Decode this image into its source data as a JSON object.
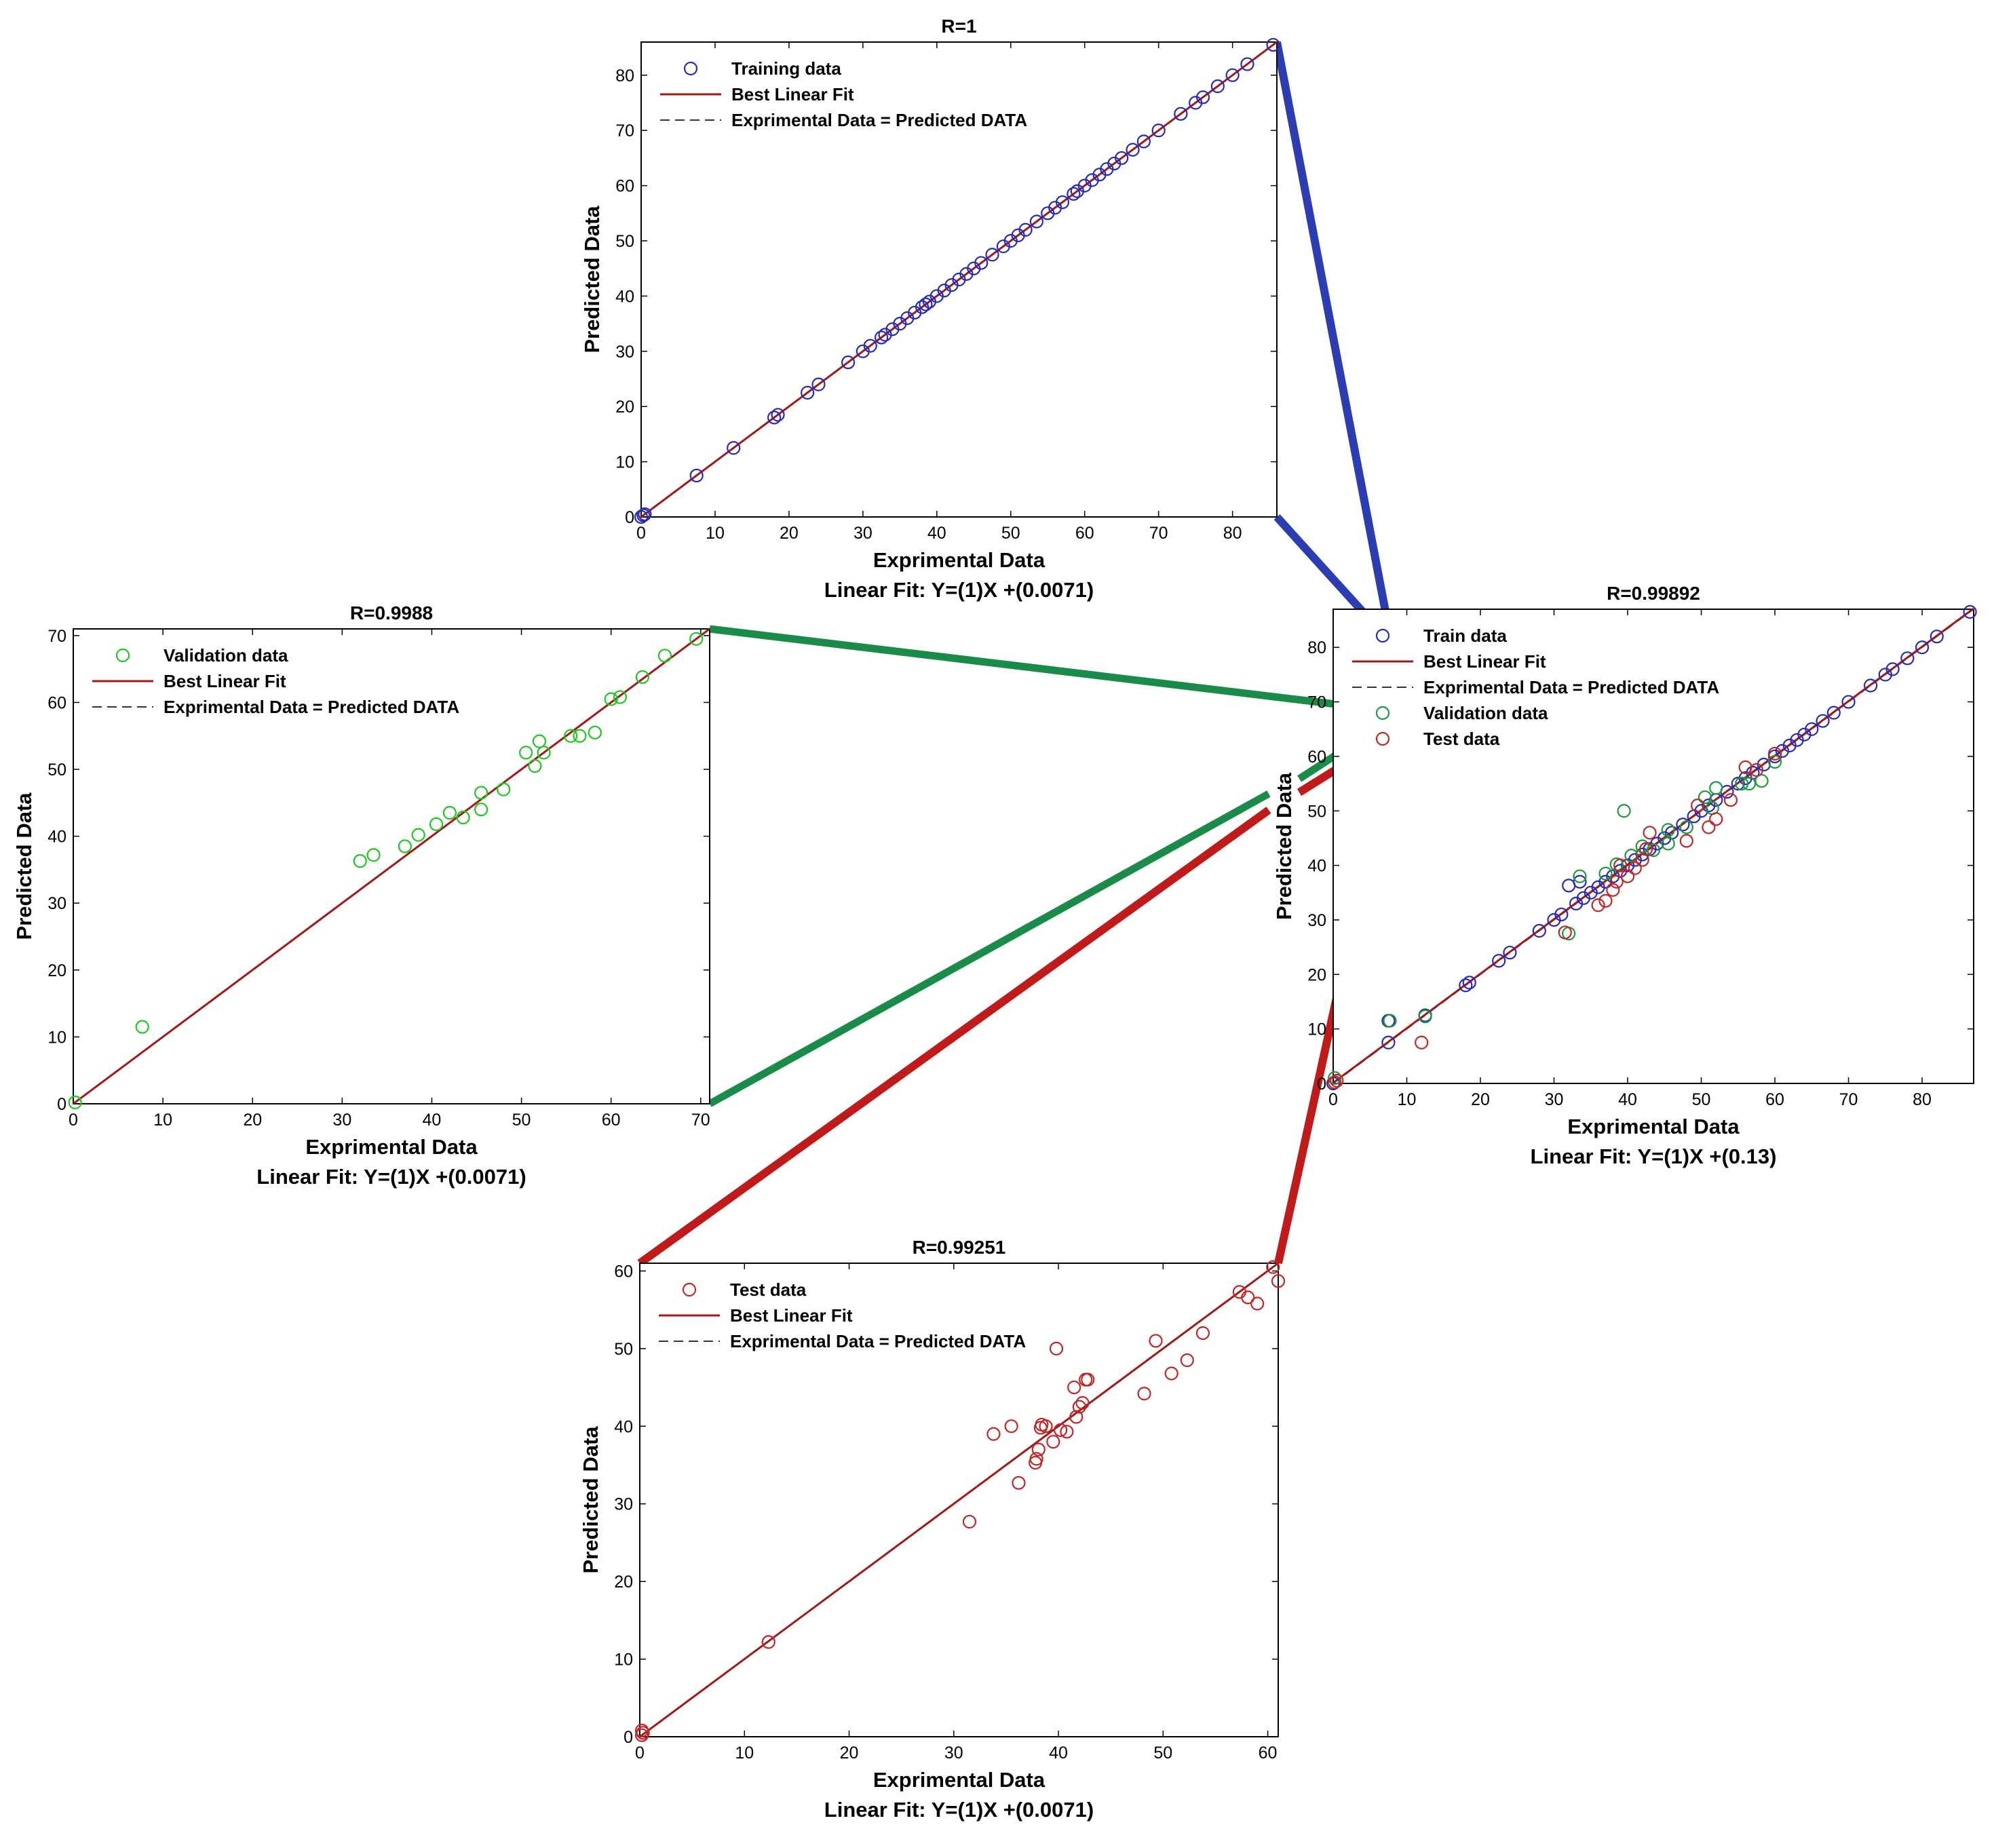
{
  "chart_data": [
    {
      "id": "training",
      "type": "scatter",
      "title": "R=1",
      "xlabel": "Exprimental Data",
      "ylabel": "Predicted Data",
      "fit_label": "Linear Fit: Y=(1)X +(0.0071)",
      "xlim": [
        0,
        86
      ],
      "ylim": [
        0,
        86
      ],
      "xticks": [
        0,
        10,
        20,
        30,
        40,
        50,
        60,
        70,
        80
      ],
      "yticks": [
        0,
        10,
        20,
        30,
        40,
        50,
        60,
        70,
        80
      ],
      "legend": [
        {
          "label": "Training data",
          "kind": "marker",
          "color": "#2a2ab4"
        },
        {
          "label": "Best Linear Fit",
          "kind": "line",
          "color": "#a01818"
        },
        {
          "label": "Exprimental Data = Predicted DATA",
          "kind": "dash",
          "color": "#333333"
        }
      ],
      "fit_line": [
        [
          0,
          0.0071
        ],
        [
          86,
          86.0071
        ]
      ],
      "series": [
        {
          "name": "Training data",
          "color": "#2a2ab4",
          "points": [
            [
              0,
              0
            ],
            [
              0.3,
              0.3
            ],
            [
              0.5,
              0.5
            ],
            [
              7.5,
              7.5
            ],
            [
              12.5,
              12.5
            ],
            [
              18,
              18
            ],
            [
              18.5,
              18.5
            ],
            [
              22.5,
              22.5
            ],
            [
              24,
              24
            ],
            [
              28,
              28
            ],
            [
              30,
              30
            ],
            [
              31,
              31
            ],
            [
              32.5,
              32.5
            ],
            [
              33,
              33
            ],
            [
              34,
              34
            ],
            [
              35,
              35
            ],
            [
              36,
              36
            ],
            [
              37,
              37
            ],
            [
              38,
              38
            ],
            [
              38.5,
              38.5
            ],
            [
              39,
              39
            ],
            [
              40,
              40
            ],
            [
              41,
              41
            ],
            [
              42,
              42
            ],
            [
              43,
              43
            ],
            [
              44,
              44
            ],
            [
              45,
              45
            ],
            [
              46,
              46
            ],
            [
              47.5,
              47.5
            ],
            [
              49,
              49
            ],
            [
              50,
              50
            ],
            [
              51,
              51
            ],
            [
              52,
              52
            ],
            [
              53.5,
              53.5
            ],
            [
              55,
              55
            ],
            [
              56,
              56
            ],
            [
              57,
              57
            ],
            [
              58.5,
              58.5
            ],
            [
              59,
              59
            ],
            [
              60,
              60
            ],
            [
              61,
              61
            ],
            [
              62,
              62
            ],
            [
              63,
              63
            ],
            [
              64,
              64
            ],
            [
              65,
              65
            ],
            [
              66.5,
              66.5
            ],
            [
              68,
              68
            ],
            [
              70,
              70
            ],
            [
              73,
              73
            ],
            [
              75,
              75
            ],
            [
              76,
              76
            ],
            [
              78,
              78
            ],
            [
              80,
              80
            ],
            [
              82,
              82
            ],
            [
              85.5,
              85.5
            ]
          ]
        }
      ]
    },
    {
      "id": "validation",
      "type": "scatter",
      "title": "R=0.9988",
      "xlabel": "Exprimental Data",
      "ylabel": "Predicted Data",
      "fit_label": "Linear Fit: Y=(1)X +(0.0071)",
      "xlim": [
        0,
        71
      ],
      "ylim": [
        0,
        71
      ],
      "xticks": [
        0,
        10,
        20,
        30,
        40,
        50,
        60,
        70
      ],
      "yticks": [
        0,
        10,
        20,
        30,
        40,
        50,
        60,
        70
      ],
      "legend": [
        {
          "label": "Validation data",
          "kind": "marker",
          "color": "#1ec81e"
        },
        {
          "label": "Best Linear Fit",
          "kind": "line",
          "color": "#a01818"
        },
        {
          "label": "Exprimental Data = Predicted DATA",
          "kind": "dash",
          "color": "#333333"
        }
      ],
      "fit_line": [
        [
          0,
          0.0071
        ],
        [
          71,
          71.0071
        ]
      ],
      "series": [
        {
          "name": "Validation data",
          "color": "#1ec81e",
          "points": [
            [
              0.2,
              0.2
            ],
            [
              7.7,
              11.5
            ],
            [
              32,
              36.3
            ],
            [
              33.5,
              37.2
            ],
            [
              37,
              38.5
            ],
            [
              38.5,
              40.2
            ],
            [
              40.5,
              41.8
            ],
            [
              42,
              43.5
            ],
            [
              43.5,
              42.8
            ],
            [
              45.5,
              44
            ],
            [
              45.5,
              46.5
            ],
            [
              48,
              47
            ],
            [
              50.5,
              52.5
            ],
            [
              51.5,
              50.5
            ],
            [
              52,
              54.2
            ],
            [
              52.5,
              52.5
            ],
            [
              55.5,
              55
            ],
            [
              56.5,
              55
            ],
            [
              58.2,
              55.5
            ],
            [
              60,
              60.5
            ],
            [
              61,
              60.8
            ],
            [
              63.5,
              63.8
            ],
            [
              66,
              67
            ],
            [
              69.5,
              69.5
            ]
          ]
        }
      ]
    },
    {
      "id": "all",
      "type": "scatter",
      "title": "R=0.99892",
      "xlabel": "Exprimental Data",
      "ylabel": "Predicted Data",
      "fit_label": "Linear Fit: Y=(1)X +(0.13)",
      "xlim": [
        0,
        87
      ],
      "ylim": [
        0,
        87
      ],
      "xticks": [
        0,
        10,
        20,
        30,
        40,
        50,
        60,
        70,
        80
      ],
      "yticks": [
        0,
        10,
        20,
        30,
        40,
        50,
        60,
        70,
        80
      ],
      "legend": [
        {
          "label": "Train data",
          "kind": "marker",
          "color": "#2a2ab4"
        },
        {
          "label": "Best Linear Fit",
          "kind": "line",
          "color": "#a01818"
        },
        {
          "label": "Exprimental Data = Predicted DATA",
          "kind": "dash",
          "color": "#333333"
        },
        {
          "label": "Validation data",
          "kind": "marker",
          "color": "#1e9a3c"
        },
        {
          "label": "Test data",
          "kind": "marker",
          "color": "#c02828"
        }
      ],
      "fit_line": [
        [
          0,
          0.13
        ],
        [
          87,
          87.13
        ]
      ],
      "series": [
        {
          "name": "Train data",
          "color": "#2a2ab4",
          "points": [
            [
              0,
              0
            ],
            [
              7.5,
              7.5
            ],
            [
              7.5,
              11.5
            ],
            [
              12.5,
              12.5
            ],
            [
              18,
              18
            ],
            [
              18.5,
              18.5
            ],
            [
              22.5,
              22.5
            ],
            [
              24,
              24
            ],
            [
              28,
              28
            ],
            [
              30,
              30
            ],
            [
              31,
              31
            ],
            [
              32,
              36.3
            ],
            [
              33,
              33
            ],
            [
              33.5,
              37
            ],
            [
              34,
              34
            ],
            [
              35,
              35
            ],
            [
              36,
              36
            ],
            [
              37,
              37
            ],
            [
              38,
              38
            ],
            [
              39,
              39
            ],
            [
              40,
              40
            ],
            [
              41,
              41
            ],
            [
              42,
              42
            ],
            [
              43,
              43
            ],
            [
              44,
              44
            ],
            [
              45,
              45
            ],
            [
              46,
              46
            ],
            [
              47.5,
              47.5
            ],
            [
              49,
              49
            ],
            [
              50,
              50
            ],
            [
              51,
              51
            ],
            [
              52,
              52
            ],
            [
              53.5,
              53.5
            ],
            [
              55,
              55
            ],
            [
              56,
              56
            ],
            [
              57,
              57
            ],
            [
              58.5,
              58.5
            ],
            [
              60,
              60
            ],
            [
              61,
              61
            ],
            [
              62,
              62
            ],
            [
              63,
              63
            ],
            [
              64,
              64
            ],
            [
              65,
              65
            ],
            [
              66.5,
              66.5
            ],
            [
              68,
              68
            ],
            [
              70,
              70
            ],
            [
              73,
              73
            ],
            [
              75,
              75
            ],
            [
              76,
              76
            ],
            [
              78,
              78
            ],
            [
              80,
              80
            ],
            [
              82,
              82
            ],
            [
              86.5,
              86.5
            ]
          ]
        },
        {
          "name": "Validation data",
          "color": "#1e9a3c",
          "points": [
            [
              0.2,
              1
            ],
            [
              7.7,
              11.5
            ],
            [
              12.5,
              12.3
            ],
            [
              32,
              27.5
            ],
            [
              33.5,
              38
            ],
            [
              37,
              38.5
            ],
            [
              38.5,
              40.2
            ],
            [
              39.5,
              50
            ],
            [
              40.5,
              41.8
            ],
            [
              42,
              43.5
            ],
            [
              43.5,
              42.8
            ],
            [
              45.5,
              44
            ],
            [
              45.5,
              46.5
            ],
            [
              48,
              47
            ],
            [
              50.5,
              52.5
            ],
            [
              51.5,
              50.5
            ],
            [
              52,
              54.2
            ],
            [
              55.5,
              55
            ],
            [
              56.5,
              55
            ],
            [
              58.2,
              55.5
            ],
            [
              60,
              59
            ]
          ]
        },
        {
          "name": "Test data",
          "color": "#c02828",
          "points": [
            [
              0.2,
              0.2
            ],
            [
              0.5,
              0.5
            ],
            [
              12,
              7.5
            ],
            [
              31.5,
              27.7
            ],
            [
              36,
              32.7
            ],
            [
              37,
              33.5
            ],
            [
              38,
              35.5
            ],
            [
              38.5,
              37
            ],
            [
              39,
              40
            ],
            [
              40,
              38
            ],
            [
              41,
              39.5
            ],
            [
              42,
              41
            ],
            [
              42.5,
              43
            ],
            [
              43,
              46
            ],
            [
              48,
              44.5
            ],
            [
              49.5,
              51
            ],
            [
              51,
              47
            ],
            [
              52,
              48.5
            ],
            [
              54,
              52
            ],
            [
              56,
              58
            ],
            [
              57.5,
              57.5
            ],
            [
              60,
              60.5
            ]
          ]
        }
      ]
    },
    {
      "id": "test",
      "type": "scatter",
      "title": "R=0.99251",
      "xlabel": "Exprimental Data",
      "ylabel": "Predicted Data",
      "fit_label": "Linear Fit: Y=(1)X +(0.0071)",
      "xlim": [
        0,
        61
      ],
      "ylim": [
        0,
        61
      ],
      "xticks": [
        0,
        10,
        20,
        30,
        40,
        50,
        60
      ],
      "yticks": [
        0,
        10,
        20,
        30,
        40,
        50,
        60
      ],
      "legend": [
        {
          "label": "Test data",
          "kind": "marker",
          "color": "#c02828"
        },
        {
          "label": "Best Linear Fit",
          "kind": "line",
          "color": "#a01818"
        },
        {
          "label": "Exprimental Data = Predicted DATA",
          "kind": "dash",
          "color": "#333333"
        }
      ],
      "fit_line": [
        [
          0,
          0.0071
        ],
        [
          61,
          61.0071
        ]
      ],
      "series": [
        {
          "name": "Test data",
          "color": "#c02828",
          "points": [
            [
              0.2,
              0.2
            ],
            [
              0.2,
              0.8
            ],
            [
              0.3,
              0.5
            ],
            [
              12.3,
              12.2
            ],
            [
              31.5,
              27.7
            ],
            [
              33.8,
              39
            ],
            [
              35.5,
              40
            ],
            [
              36.2,
              32.7
            ],
            [
              37.8,
              35.3
            ],
            [
              37.9,
              35.8
            ],
            [
              38.1,
              37
            ],
            [
              38.3,
              39.8
            ],
            [
              38.4,
              40.2
            ],
            [
              38.8,
              40
            ],
            [
              39.5,
              38
            ],
            [
              39.8,
              50
            ],
            [
              40.2,
              39.5
            ],
            [
              40.8,
              39.3
            ],
            [
              41.5,
              45
            ],
            [
              41.7,
              41.2
            ],
            [
              42,
              42.5
            ],
            [
              42.3,
              43
            ],
            [
              42.6,
              46
            ],
            [
              42.8,
              46
            ],
            [
              48.2,
              44.2
            ],
            [
              49.3,
              51
            ],
            [
              50.8,
              46.8
            ],
            [
              52.3,
              48.5
            ],
            [
              53.8,
              52
            ],
            [
              57.3,
              57.3
            ],
            [
              58.1,
              56.6
            ],
            [
              59,
              55.8
            ],
            [
              60.5,
              60.5
            ],
            [
              61,
              58.7
            ]
          ]
        }
      ]
    }
  ],
  "connectors": [
    {
      "color": "#2c3db3"
    },
    {
      "color": "#1a8c4a"
    },
    {
      "color": "#c11a1a"
    }
  ]
}
